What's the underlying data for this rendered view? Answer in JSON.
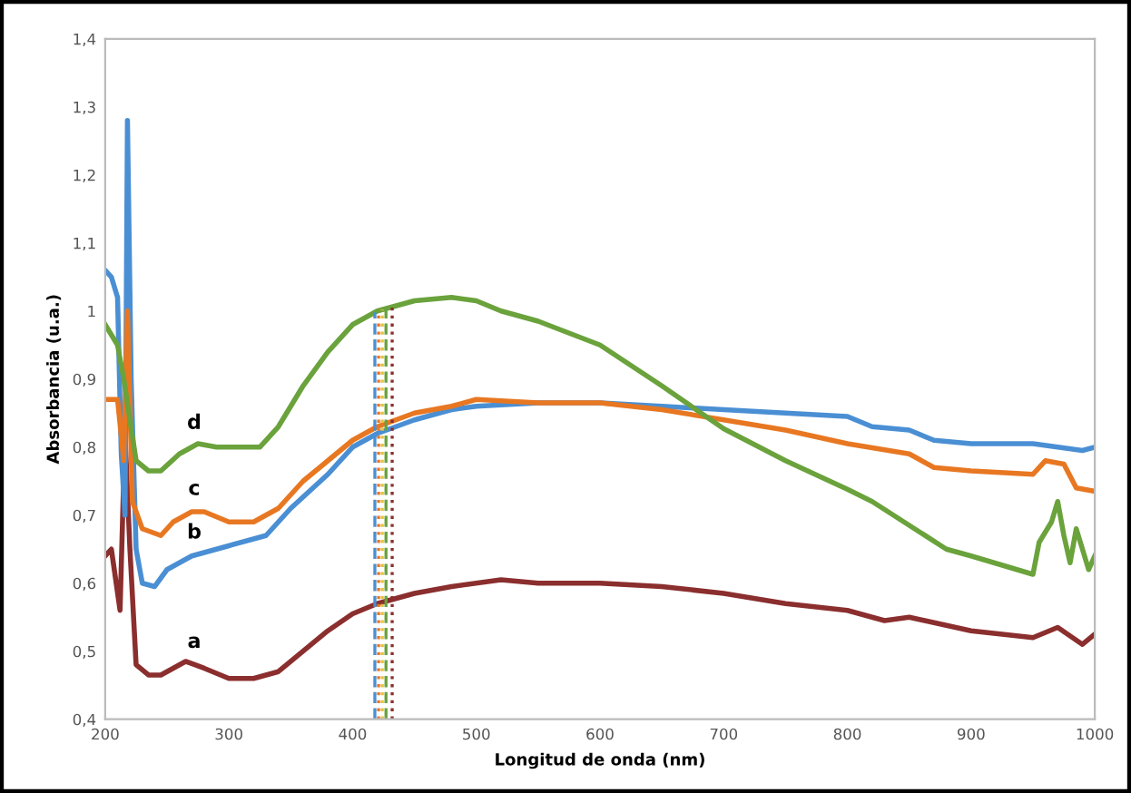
{
  "chart_data": {
    "type": "line",
    "xlabel": "Longitud de onda (nm)",
    "ylabel": "Absorbancia (u.a.)",
    "xlim": [
      200,
      1000
    ],
    "xticks": [
      200,
      300,
      400,
      500,
      600,
      700,
      800,
      900,
      1000
    ],
    "ylim": [
      0.4,
      1.4
    ],
    "yticks": [
      {
        "value": 0.4,
        "label": "0,4"
      },
      {
        "value": 0.5,
        "label": "0,5"
      },
      {
        "value": 0.6,
        "label": "0,6"
      },
      {
        "value": 0.7,
        "label": "0,7"
      },
      {
        "value": 0.8,
        "label": "0,8"
      },
      {
        "value": 0.9,
        "label": "0,9"
      },
      1,
      {
        "value": 1.1,
        "label": "1,1"
      },
      {
        "value": 1.2,
        "label": "1,2"
      },
      {
        "value": 1.3,
        "label": "1,3"
      },
      {
        "value": 1.4,
        "label": "1,4"
      }
    ],
    "grid": false,
    "legend": false,
    "marker": "none",
    "line_style": "solid",
    "series": [
      {
        "name": "a",
        "color": "#8b2e2e",
        "x": [
          200,
          205,
          212,
          216,
          220,
          225,
          235,
          245,
          265,
          280,
          300,
          320,
          340,
          360,
          380,
          400,
          420,
          450,
          480,
          520,
          550,
          600,
          650,
          700,
          750,
          800,
          830,
          850,
          900,
          950,
          970,
          990,
          1000
        ],
        "values": [
          0.64,
          0.65,
          0.56,
          0.82,
          0.65,
          0.48,
          0.465,
          0.465,
          0.485,
          0.475,
          0.46,
          0.46,
          0.47,
          0.5,
          0.53,
          0.555,
          0.57,
          0.585,
          0.595,
          0.605,
          0.6,
          0.6,
          0.595,
          0.585,
          0.57,
          0.56,
          0.545,
          0.55,
          0.53,
          0.52,
          0.535,
          0.51,
          0.525
        ]
      },
      {
        "name": "b",
        "color": "#4a8fd4",
        "x": [
          200,
          205,
          210,
          213,
          216,
          218,
          221,
          225,
          230,
          240,
          250,
          270,
          300,
          330,
          350,
          380,
          400,
          420,
          450,
          480,
          500,
          550,
          600,
          650,
          700,
          750,
          800,
          820,
          850,
          870,
          900,
          950,
          990,
          1000
        ],
        "values": [
          1.06,
          1.05,
          1.02,
          0.79,
          0.7,
          1.28,
          0.9,
          0.65,
          0.6,
          0.595,
          0.62,
          0.64,
          0.655,
          0.67,
          0.71,
          0.76,
          0.8,
          0.82,
          0.84,
          0.855,
          0.86,
          0.865,
          0.865,
          0.86,
          0.855,
          0.85,
          0.845,
          0.83,
          0.825,
          0.81,
          0.805,
          0.805,
          0.795,
          0.8
        ]
      },
      {
        "name": "c",
        "color": "#e87722",
        "x": [
          200,
          210,
          215,
          218,
          222,
          230,
          245,
          255,
          270,
          280,
          300,
          320,
          340,
          360,
          380,
          400,
          420,
          450,
          480,
          500,
          550,
          600,
          650,
          700,
          750,
          800,
          850,
          870,
          900,
          950,
          960,
          975,
          985,
          1000
        ],
        "values": [
          0.87,
          0.87,
          0.78,
          1.0,
          0.72,
          0.68,
          0.67,
          0.69,
          0.705,
          0.705,
          0.69,
          0.69,
          0.71,
          0.75,
          0.78,
          0.81,
          0.83,
          0.85,
          0.86,
          0.87,
          0.865,
          0.865,
          0.855,
          0.84,
          0.825,
          0.805,
          0.79,
          0.77,
          0.765,
          0.76,
          0.78,
          0.775,
          0.74,
          0.735
        ]
      },
      {
        "name": "d",
        "color": "#6aa23c",
        "x": [
          200,
          210,
          215,
          225,
          235,
          245,
          260,
          275,
          290,
          310,
          325,
          340,
          360,
          380,
          400,
          420,
          450,
          480,
          500,
          520,
          550,
          600,
          650,
          700,
          750,
          800,
          820,
          850,
          880,
          900,
          950,
          955,
          965,
          970,
          975,
          980,
          985,
          990,
          995,
          1000
        ],
        "values": [
          0.98,
          0.95,
          0.9,
          0.78,
          0.765,
          0.765,
          0.79,
          0.805,
          0.8,
          0.8,
          0.8,
          0.83,
          0.89,
          0.94,
          0.98,
          1.0,
          1.015,
          1.02,
          1.015,
          1.0,
          0.985,
          0.95,
          0.89,
          0.827,
          0.78,
          0.738,
          0.72,
          0.685,
          0.65,
          0.64,
          0.613,
          0.66,
          0.69,
          0.72,
          0.67,
          0.63,
          0.68,
          0.65,
          0.62,
          0.64
        ]
      }
    ],
    "ref_lines": [
      {
        "axis": "x",
        "value": 418,
        "color": "#4a8fd4",
        "line_style": "dashed"
      },
      {
        "axis": "x",
        "value": 421,
        "color": "#e87722",
        "line_style": "dotted"
      },
      {
        "axis": "x",
        "value": 424,
        "color": "#e8c040",
        "line_style": "dotted"
      },
      {
        "axis": "x",
        "value": 427,
        "color": "#6aa23c",
        "line_style": "dashed"
      },
      {
        "axis": "x",
        "value": 432,
        "color": "#8b2e2e",
        "line_style": "dotted"
      }
    ]
  }
}
